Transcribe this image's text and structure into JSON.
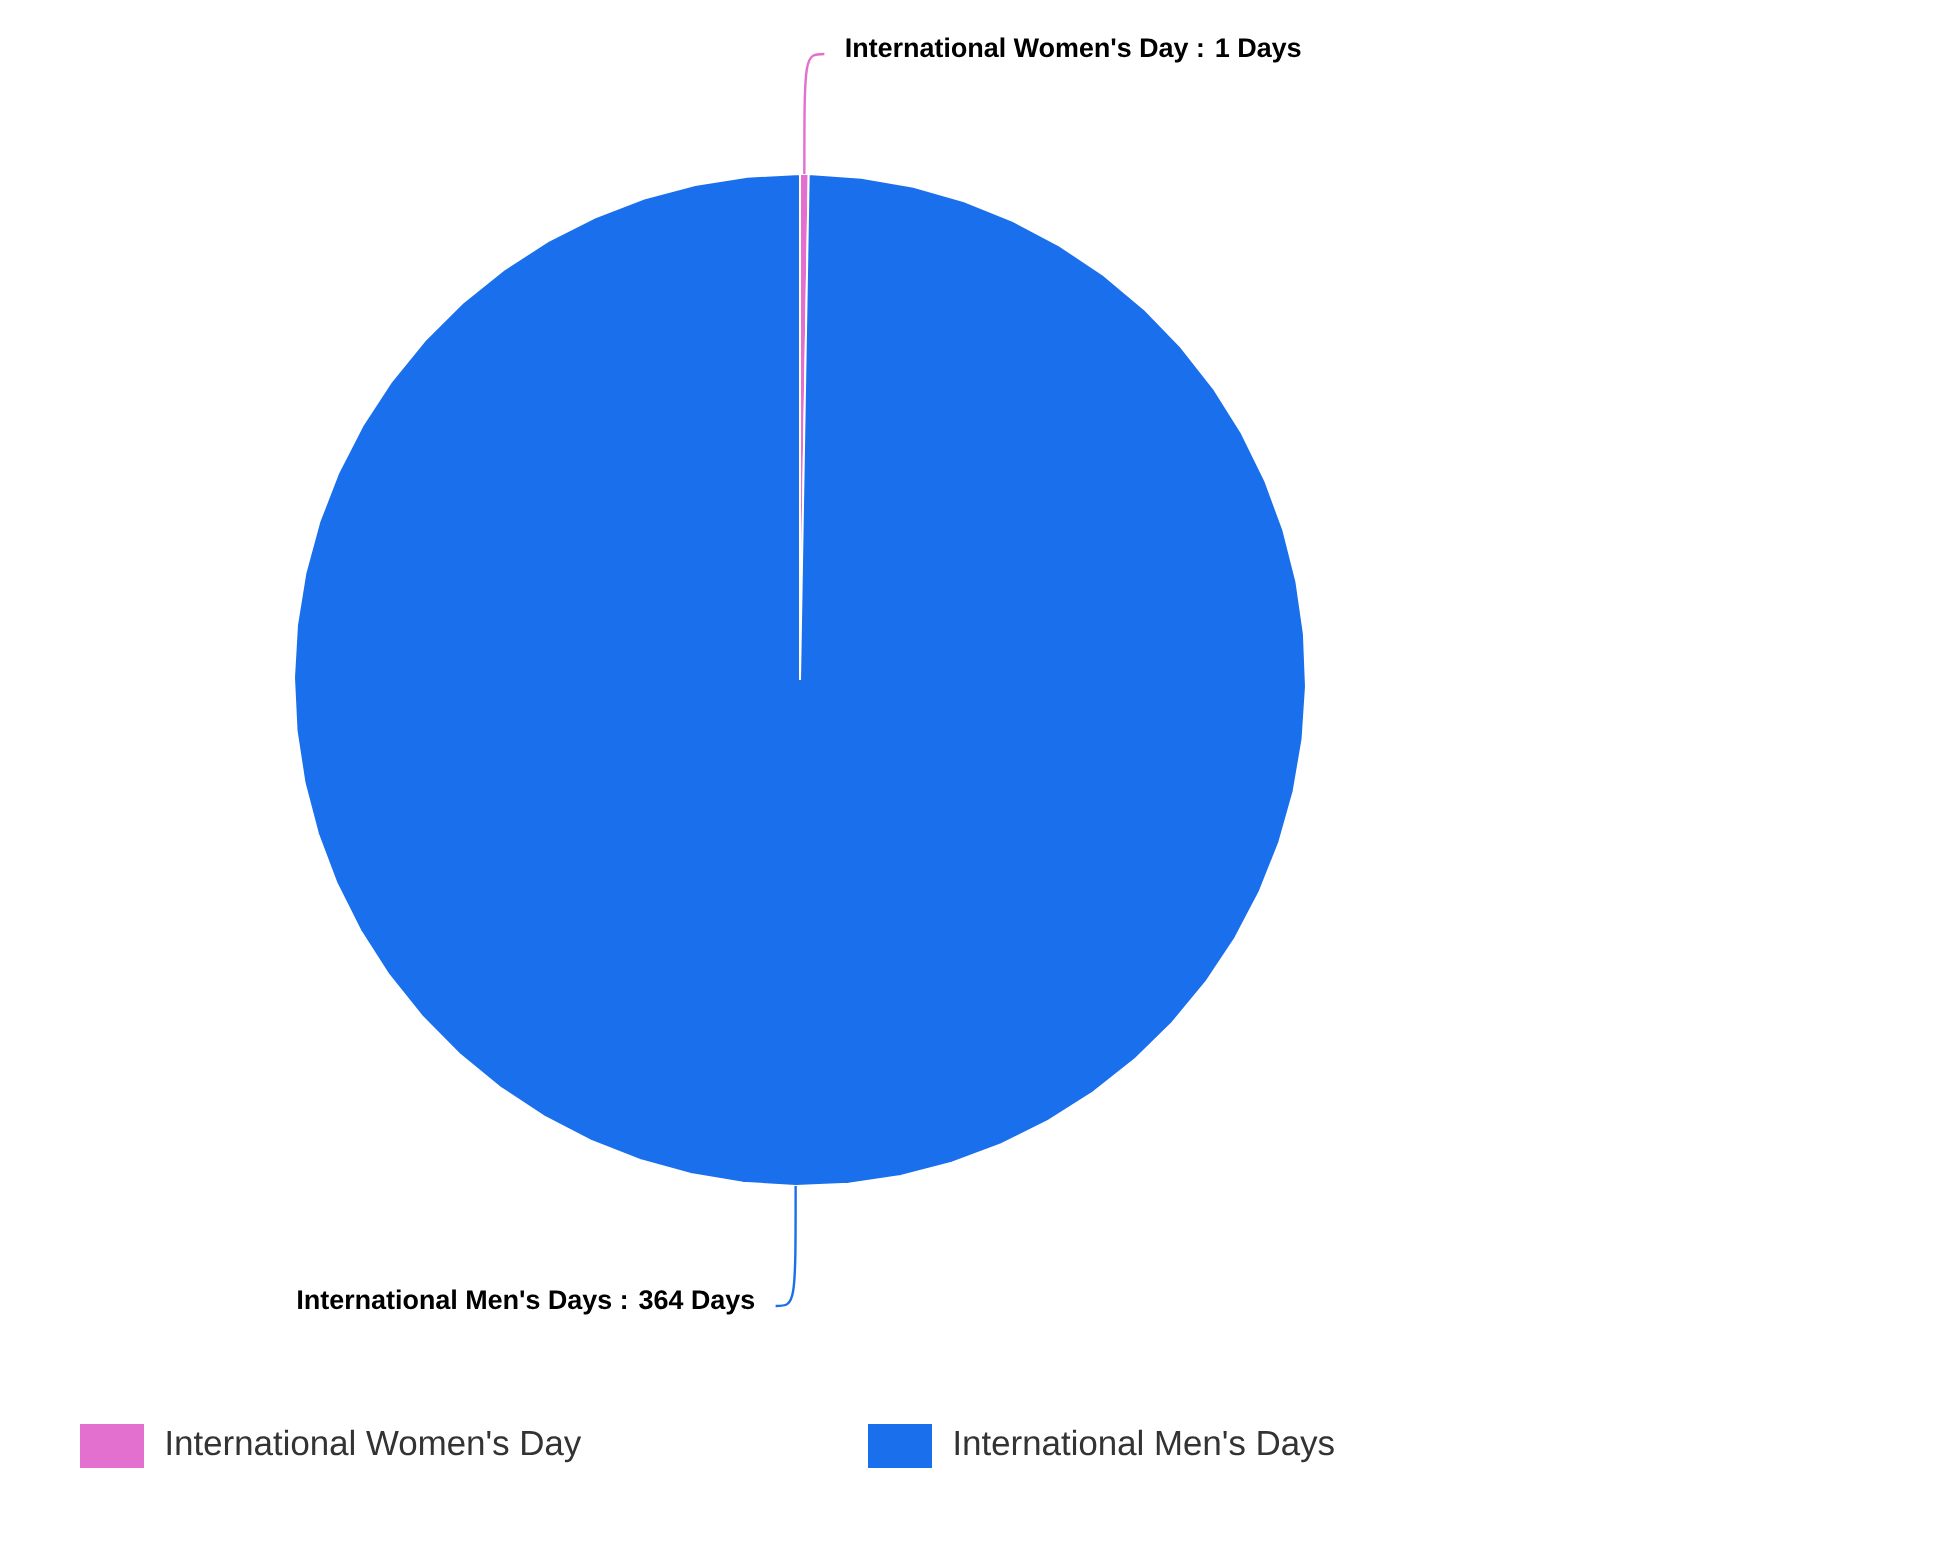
{
  "chart_data": {
    "type": "pie",
    "categories": [
      "International Women's Day",
      "International Men's Days"
    ],
    "values": [
      1,
      364
    ],
    "colors": [
      "#e36fcf",
      "#1a6fed"
    ],
    "value_labels": [
      "International Women's Day : 1 Days",
      "International Men's Days : 364 Days"
    ],
    "legend": "bottom"
  }
}
